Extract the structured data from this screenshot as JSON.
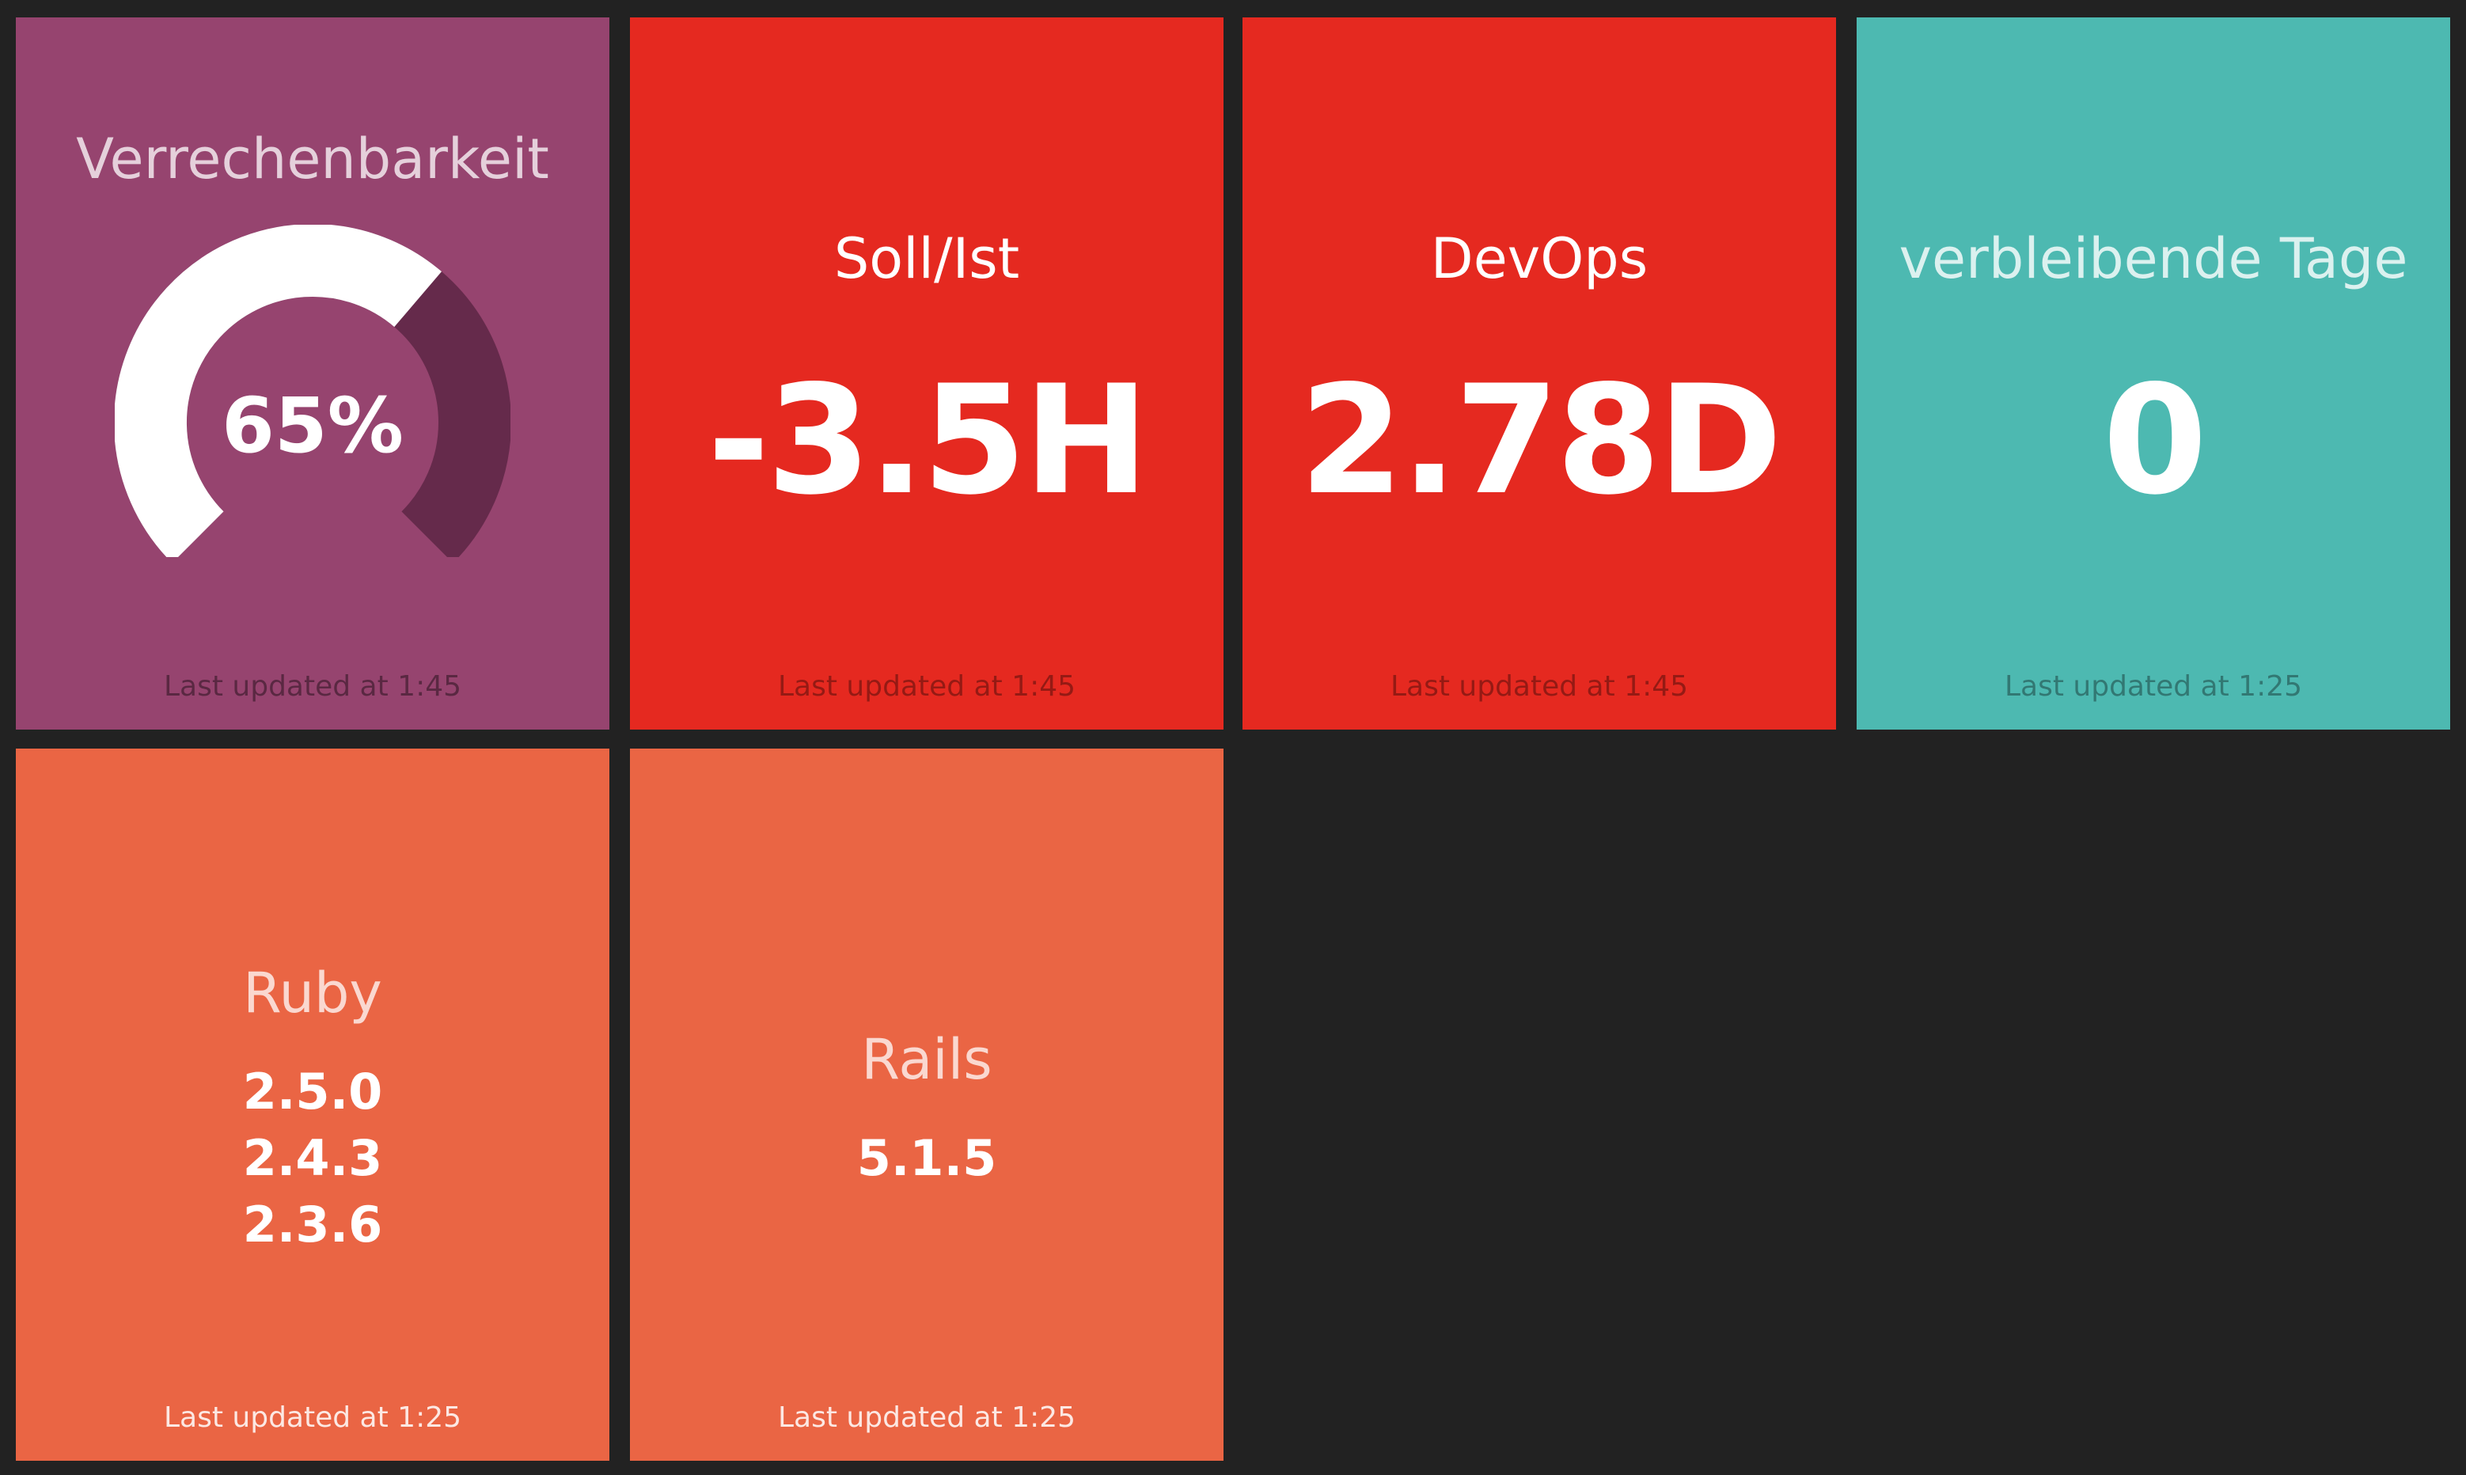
{
  "widgets": {
    "verrechenbarkeit": {
      "title": "Verrechenbarkeit",
      "value_text": "65%",
      "value": 65,
      "updated": "Last updated at 1:45",
      "color": "#96446f"
    },
    "soll_ist": {
      "title": "Soll/Ist",
      "value": "-3.5H",
      "updated": "Last updated at 1:45",
      "color": "#e52920"
    },
    "devops": {
      "title": "DevOps",
      "value": "2.78D",
      "updated": "Last updated at 1:45",
      "color": "#e52920"
    },
    "verbleibende_tage": {
      "title": "verbleibende Tage",
      "value": "0",
      "updated": "Last updated at 1:25",
      "color": "#4db9b1"
    },
    "ruby": {
      "title": "Ruby",
      "items": [
        "2.5.0",
        "2.4.3",
        "2.3.6"
      ],
      "updated": "Last updated at 1:25",
      "color": "#ea6544"
    },
    "rails": {
      "title": "Rails",
      "items": [
        "5.1.5"
      ],
      "updated": "Last updated at 1:25",
      "color": "#ea6544"
    }
  }
}
